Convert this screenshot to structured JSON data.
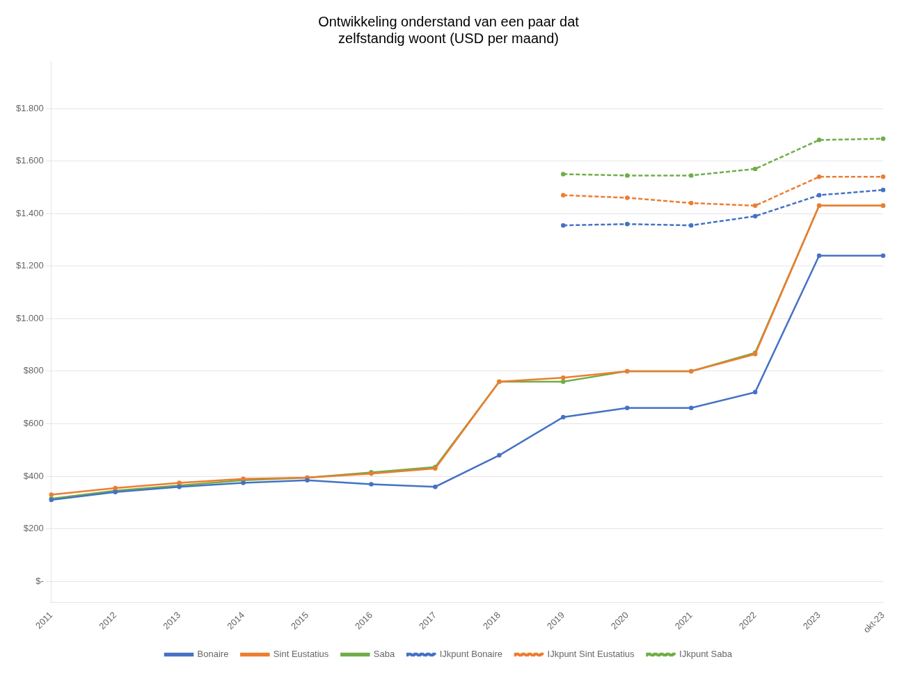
{
  "chart_data": {
    "type": "line",
    "title": "Ontwikkeling onderstand van een paar dat\nzelfstandig woont (USD per maand)",
    "categories": [
      "2011",
      "2012",
      "2013",
      "2014",
      "2015",
      "2016",
      "2017",
      "2018",
      "2019",
      "2020",
      "2021",
      "2022",
      "2023",
      "okt-23"
    ],
    "series": [
      {
        "name": "Bonaire",
        "color": "#4472C4",
        "line_style": "solid",
        "values": [
          310,
          340,
          360,
          375,
          385,
          370,
          360,
          480,
          625,
          660,
          660,
          720,
          1240,
          1240
        ]
      },
      {
        "name": "Sint Eustatius",
        "color": "#ED7D31",
        "line_style": "solid",
        "values": [
          330,
          355,
          375,
          390,
          395,
          410,
          430,
          760,
          775,
          800,
          800,
          865,
          1430,
          1430
        ]
      },
      {
        "name": "Saba",
        "color": "#70AD47",
        "line_style": "solid",
        "values": [
          315,
          345,
          365,
          385,
          395,
          415,
          435,
          760,
          760,
          800,
          800,
          870,
          1430,
          1430
        ]
      },
      {
        "name": "IJkpunt Bonaire",
        "color": "#4472C4",
        "line_style": "dashed",
        "values": [
          null,
          null,
          null,
          null,
          null,
          null,
          null,
          null,
          1355,
          1360,
          1355,
          1390,
          1470,
          1490
        ]
      },
      {
        "name": "IJkpunt Sint Eustatius",
        "color": "#ED7D31",
        "line_style": "dashed",
        "values": [
          null,
          null,
          null,
          null,
          null,
          null,
          null,
          null,
          1470,
          1460,
          1440,
          1430,
          1540,
          1540
        ]
      },
      {
        "name": "IJkpunt Saba",
        "color": "#70AD47",
        "line_style": "dashed",
        "values": [
          null,
          null,
          null,
          null,
          null,
          null,
          null,
          null,
          1550,
          1545,
          1545,
          1570,
          1680,
          1685
        ]
      }
    ],
    "ylim": [
      -80,
      1980
    ],
    "yticks": [
      {
        "value": 0,
        "label": "$-"
      },
      {
        "value": 200,
        "label": "$200"
      },
      {
        "value": 400,
        "label": "$400"
      },
      {
        "value": 600,
        "label": "$600"
      },
      {
        "value": 800,
        "label": "$800"
      },
      {
        "value": 1000,
        "label": "$1.000"
      },
      {
        "value": 1200,
        "label": "$1.200"
      },
      {
        "value": 1400,
        "label": "$1.400"
      },
      {
        "value": 1600,
        "label": "$1.600"
      },
      {
        "value": 1800,
        "label": "$1.800"
      }
    ],
    "grid": true,
    "legend": "bottom"
  }
}
